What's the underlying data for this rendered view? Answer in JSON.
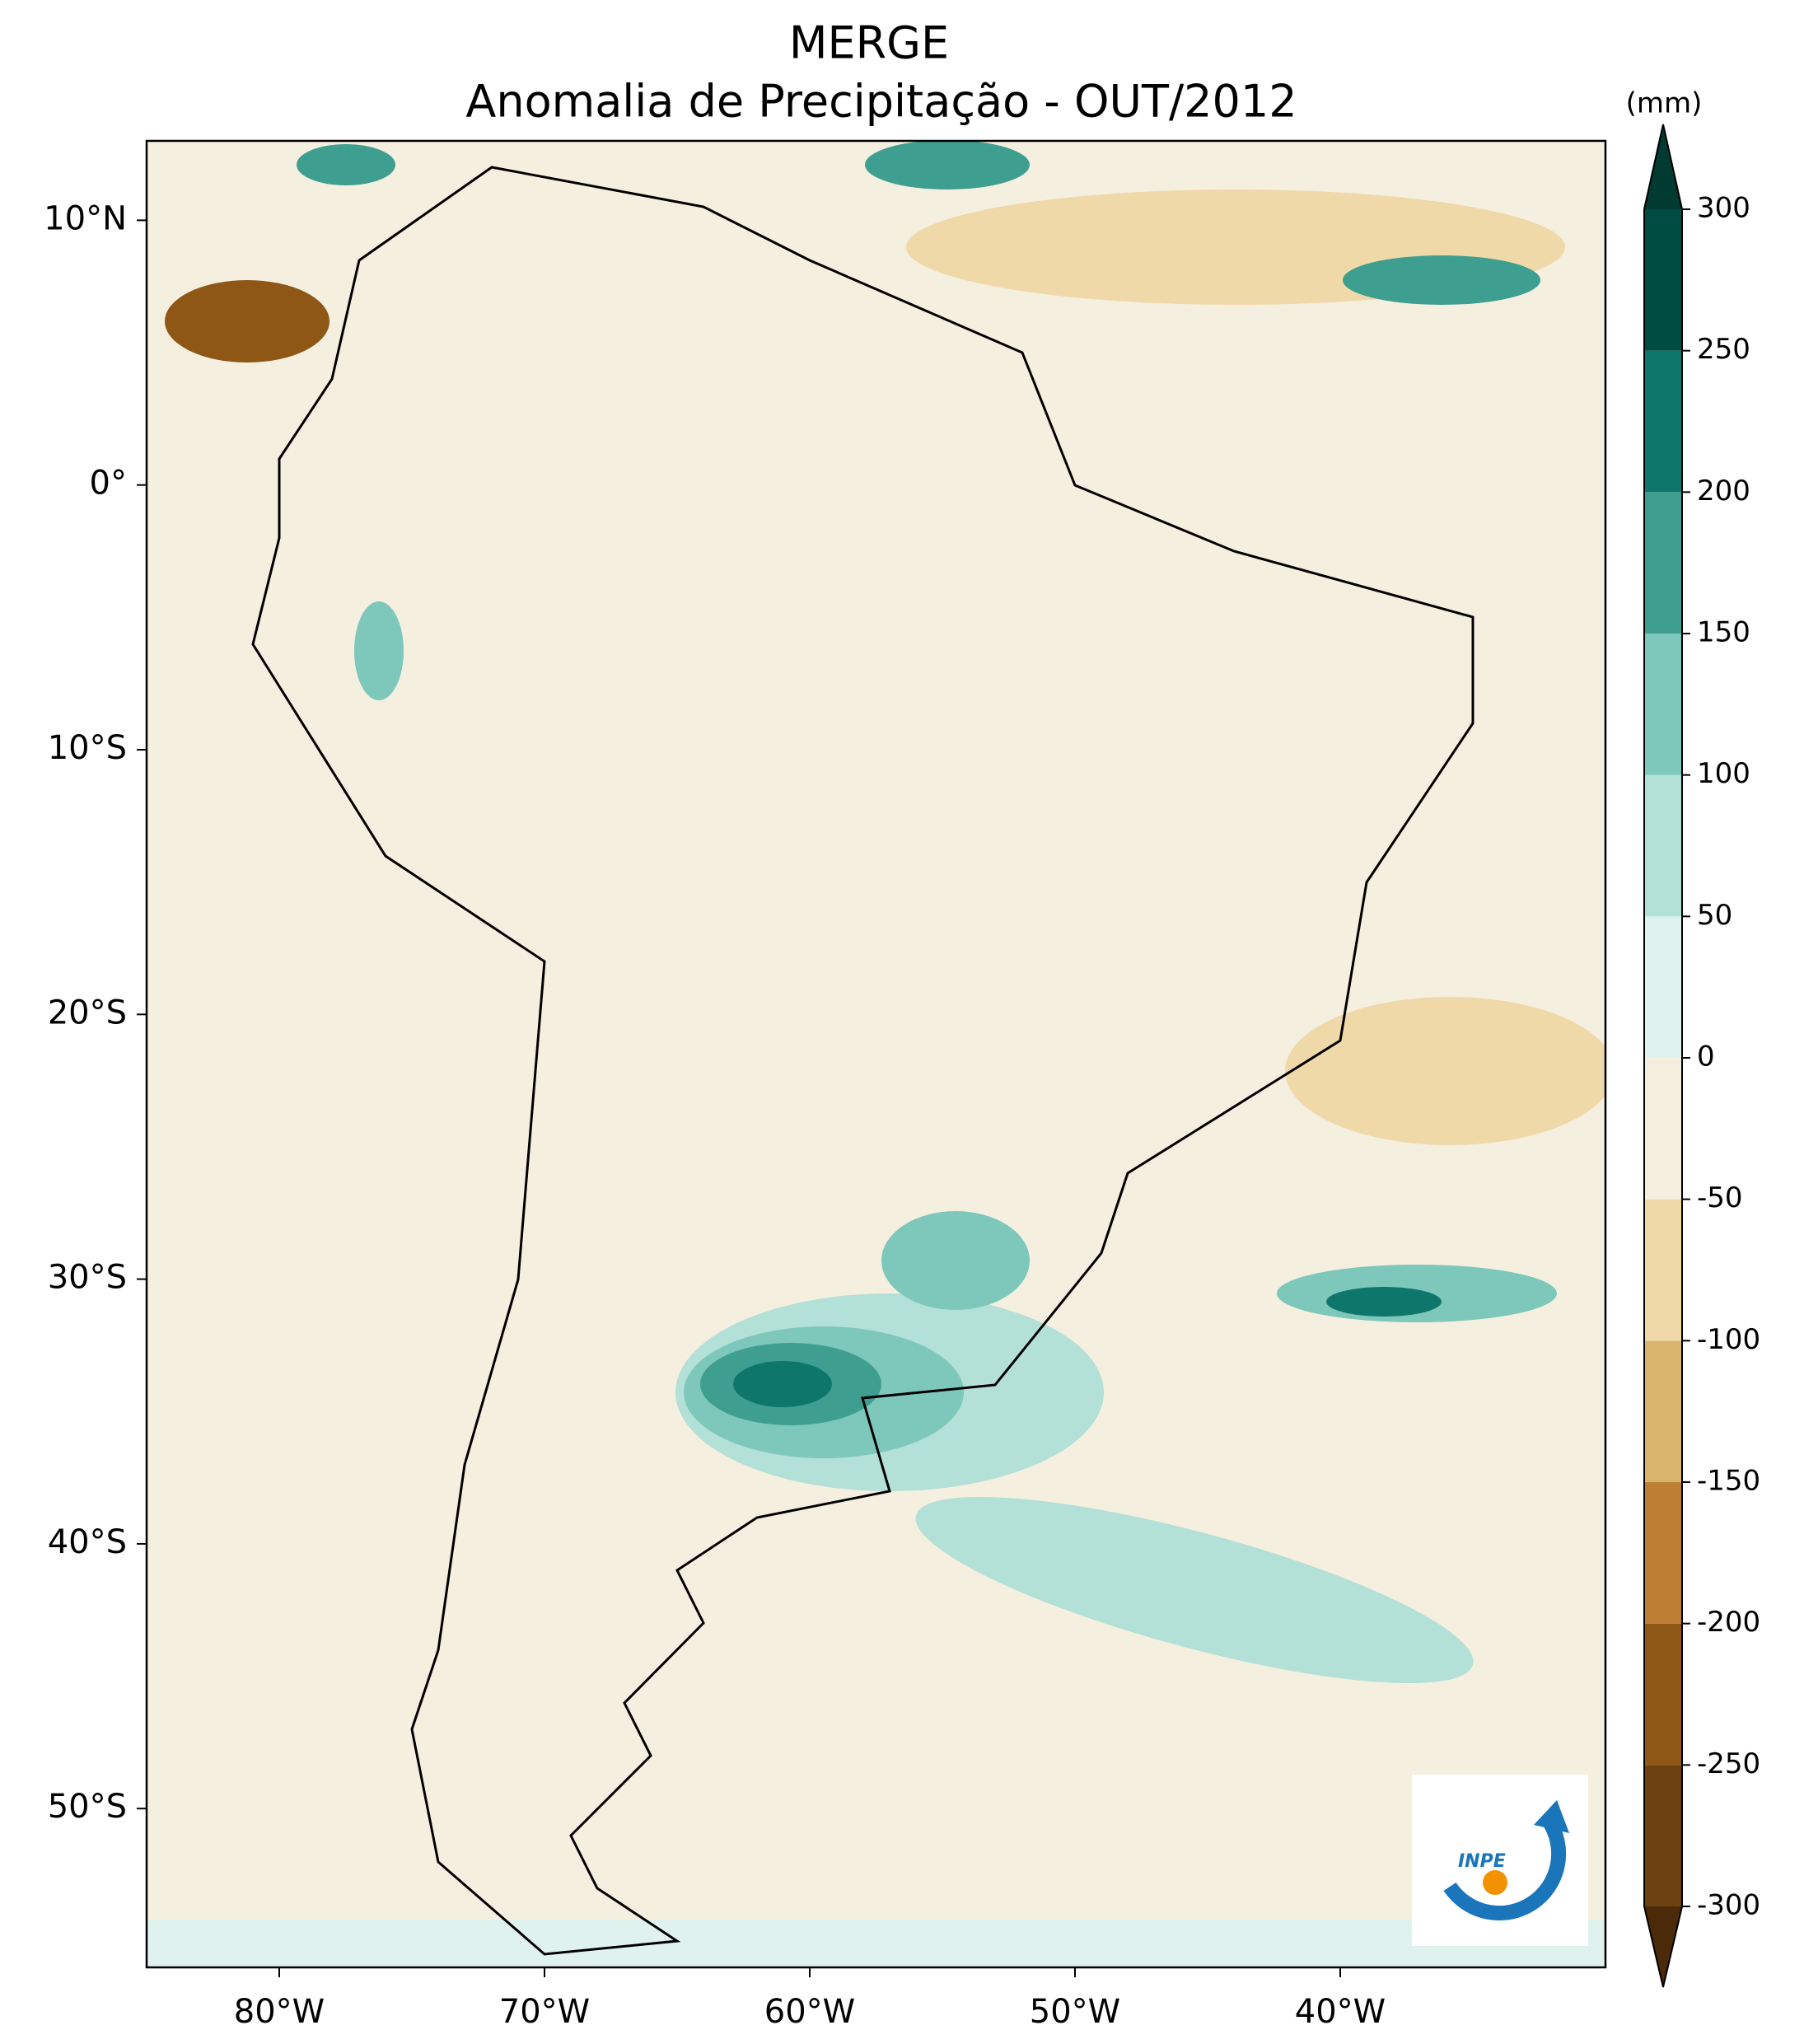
{
  "chart_data": {
    "type": "contour-map",
    "title": "MERGE",
    "subtitle": "Anomalia de Precipitação - OUT/2012",
    "colorbar_unit": "(mm)",
    "xlim": [
      -85,
      -30
    ],
    "ylim": [
      -56,
      13
    ],
    "xticks": [
      {
        "value": -80,
        "label": "80°W"
      },
      {
        "value": -70,
        "label": "70°W"
      },
      {
        "value": -60,
        "label": "60°W"
      },
      {
        "value": -50,
        "label": "50°W"
      },
      {
        "value": -40,
        "label": "40°W"
      }
    ],
    "yticks": [
      {
        "value": 10,
        "label": "10°N"
      },
      {
        "value": 0,
        "label": "0°"
      },
      {
        "value": -10,
        "label": "10°S"
      },
      {
        "value": -20,
        "label": "20°S"
      },
      {
        "value": -30,
        "label": "30°S"
      },
      {
        "value": -40,
        "label": "40°S"
      },
      {
        "value": -50,
        "label": "50°S"
      }
    ],
    "levels": [
      -300,
      -250,
      -200,
      -150,
      -100,
      -50,
      0,
      50,
      100,
      150,
      200,
      250,
      300
    ],
    "colors": [
      "#4a2a08",
      "#6b420f",
      "#8e5716",
      "#bd7f33",
      "#d8b46c",
      "#efd9a8",
      "#f5efe0",
      "#e0f2ee",
      "#b3e0d7",
      "#7dc8bb",
      "#3e9e90",
      "#0f766c",
      "#004c42",
      "#003a30"
    ],
    "logo": "INPE"
  }
}
